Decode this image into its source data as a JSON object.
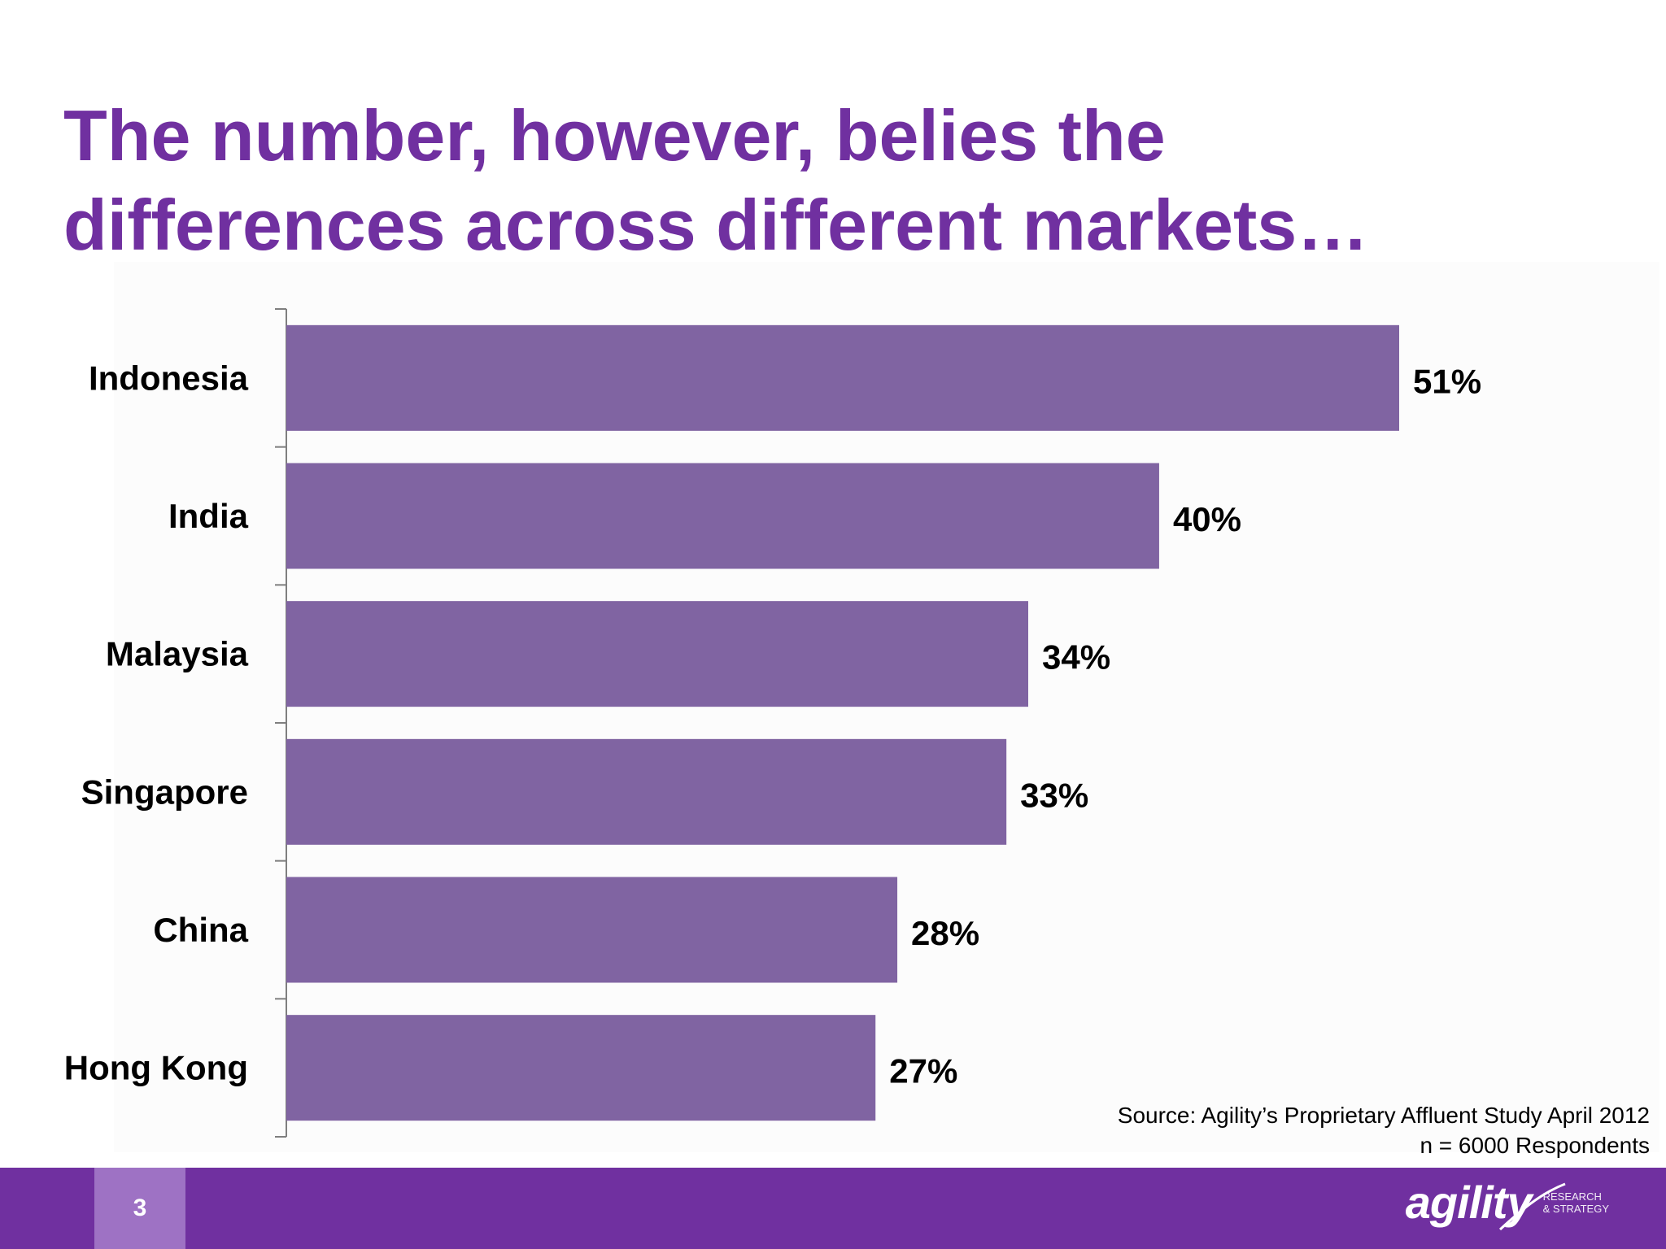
{
  "title": "The number, however, belies the differences across different markets…",
  "title_lines": [
    "The number, however, belies the",
    "differences across different markets…"
  ],
  "colors": {
    "title": "#7030a0",
    "bar": "#8064a2",
    "footer": "#7030a0",
    "page_box": "#9e72c4",
    "axis": "#7f7f7f"
  },
  "chart_data": {
    "type": "bar",
    "orientation": "horizontal",
    "categories": [
      "Indonesia",
      "India",
      "Malaysia",
      "Singapore",
      "China",
      "Hong Kong"
    ],
    "values": [
      51,
      40,
      34,
      33,
      28,
      27
    ],
    "data_labels": [
      "51%",
      "40%",
      "34%",
      "33%",
      "28%",
      "27%"
    ],
    "unit": "%",
    "xlim": [
      0,
      51
    ],
    "grid": false,
    "legend": "none"
  },
  "source": {
    "line1": "Source: Agility’s Proprietary Affluent Study April 2012",
    "line2": "n = 6000 Respondents"
  },
  "footer": {
    "page_number": "3",
    "logo_text": "agility",
    "logo_sub_line1": "RESEARCH",
    "logo_sub_line2": "& STRATEGY"
  }
}
